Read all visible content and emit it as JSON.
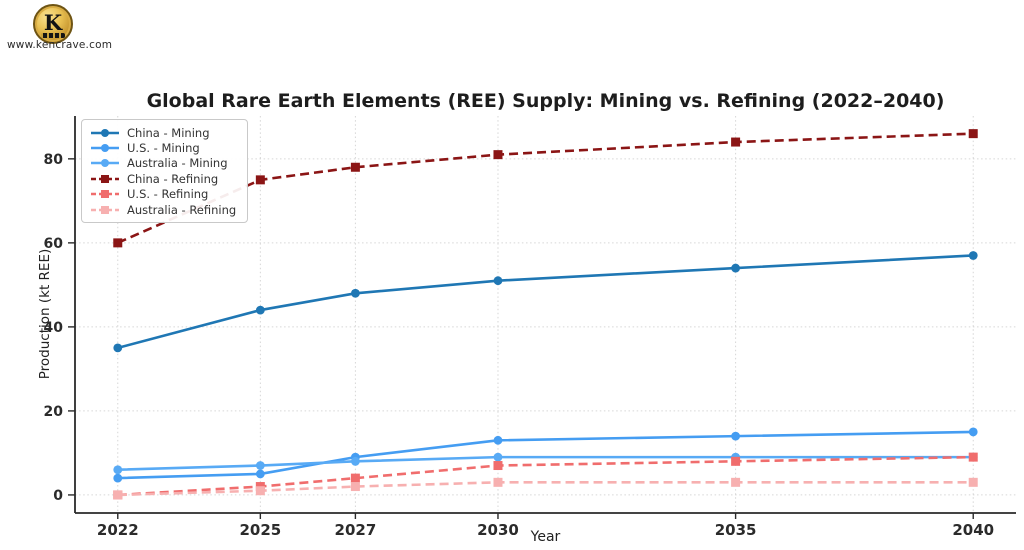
{
  "branding": {
    "logo_letter": "K",
    "website": "www.kencrave.com"
  },
  "chart_data": {
    "type": "line",
    "title": "Global Rare Earth Elements (REE) Supply: Mining vs. Refining (2022–2040)",
    "xlabel": "Year",
    "ylabel": "Production (kt REE)",
    "x": [
      2022,
      2025,
      2027,
      2030,
      2035,
      2040
    ],
    "xticks": [
      2022,
      2025,
      2027,
      2030,
      2035,
      2040
    ],
    "yticks": [
      0,
      20,
      40,
      60,
      80
    ],
    "xlim": [
      2021.1,
      2040.9
    ],
    "ylim": [
      -4.3,
      90.2
    ],
    "grid": true,
    "legend_position": "upper left",
    "series": [
      {
        "name": "China - Mining",
        "values": [
          35,
          44,
          48,
          51,
          54,
          57
        ],
        "color": "#1f77b4",
        "style": "solid",
        "marker": "circle"
      },
      {
        "name": "U.S. - Mining",
        "values": [
          4,
          5,
          9,
          13,
          14,
          15
        ],
        "color": "#459df2",
        "style": "solid",
        "marker": "circle"
      },
      {
        "name": "Australia - Mining",
        "values": [
          6,
          7,
          8,
          9,
          9,
          9
        ],
        "color": "#58aaf5",
        "style": "solid",
        "marker": "circle"
      },
      {
        "name": "China - Refining",
        "values": [
          60,
          75,
          78,
          81,
          84,
          86
        ],
        "color": "#8b1515",
        "style": "dashed",
        "marker": "square"
      },
      {
        "name": "U.S. - Refining",
        "values": [
          0,
          2,
          4,
          7,
          8,
          9
        ],
        "color": "#f06d6d",
        "style": "dashed",
        "marker": "square"
      },
      {
        "name": "Australia - Refining",
        "values": [
          0,
          1,
          2,
          3,
          3,
          3
        ],
        "color": "#f7b0b0",
        "style": "dashed",
        "marker": "square"
      }
    ]
  }
}
